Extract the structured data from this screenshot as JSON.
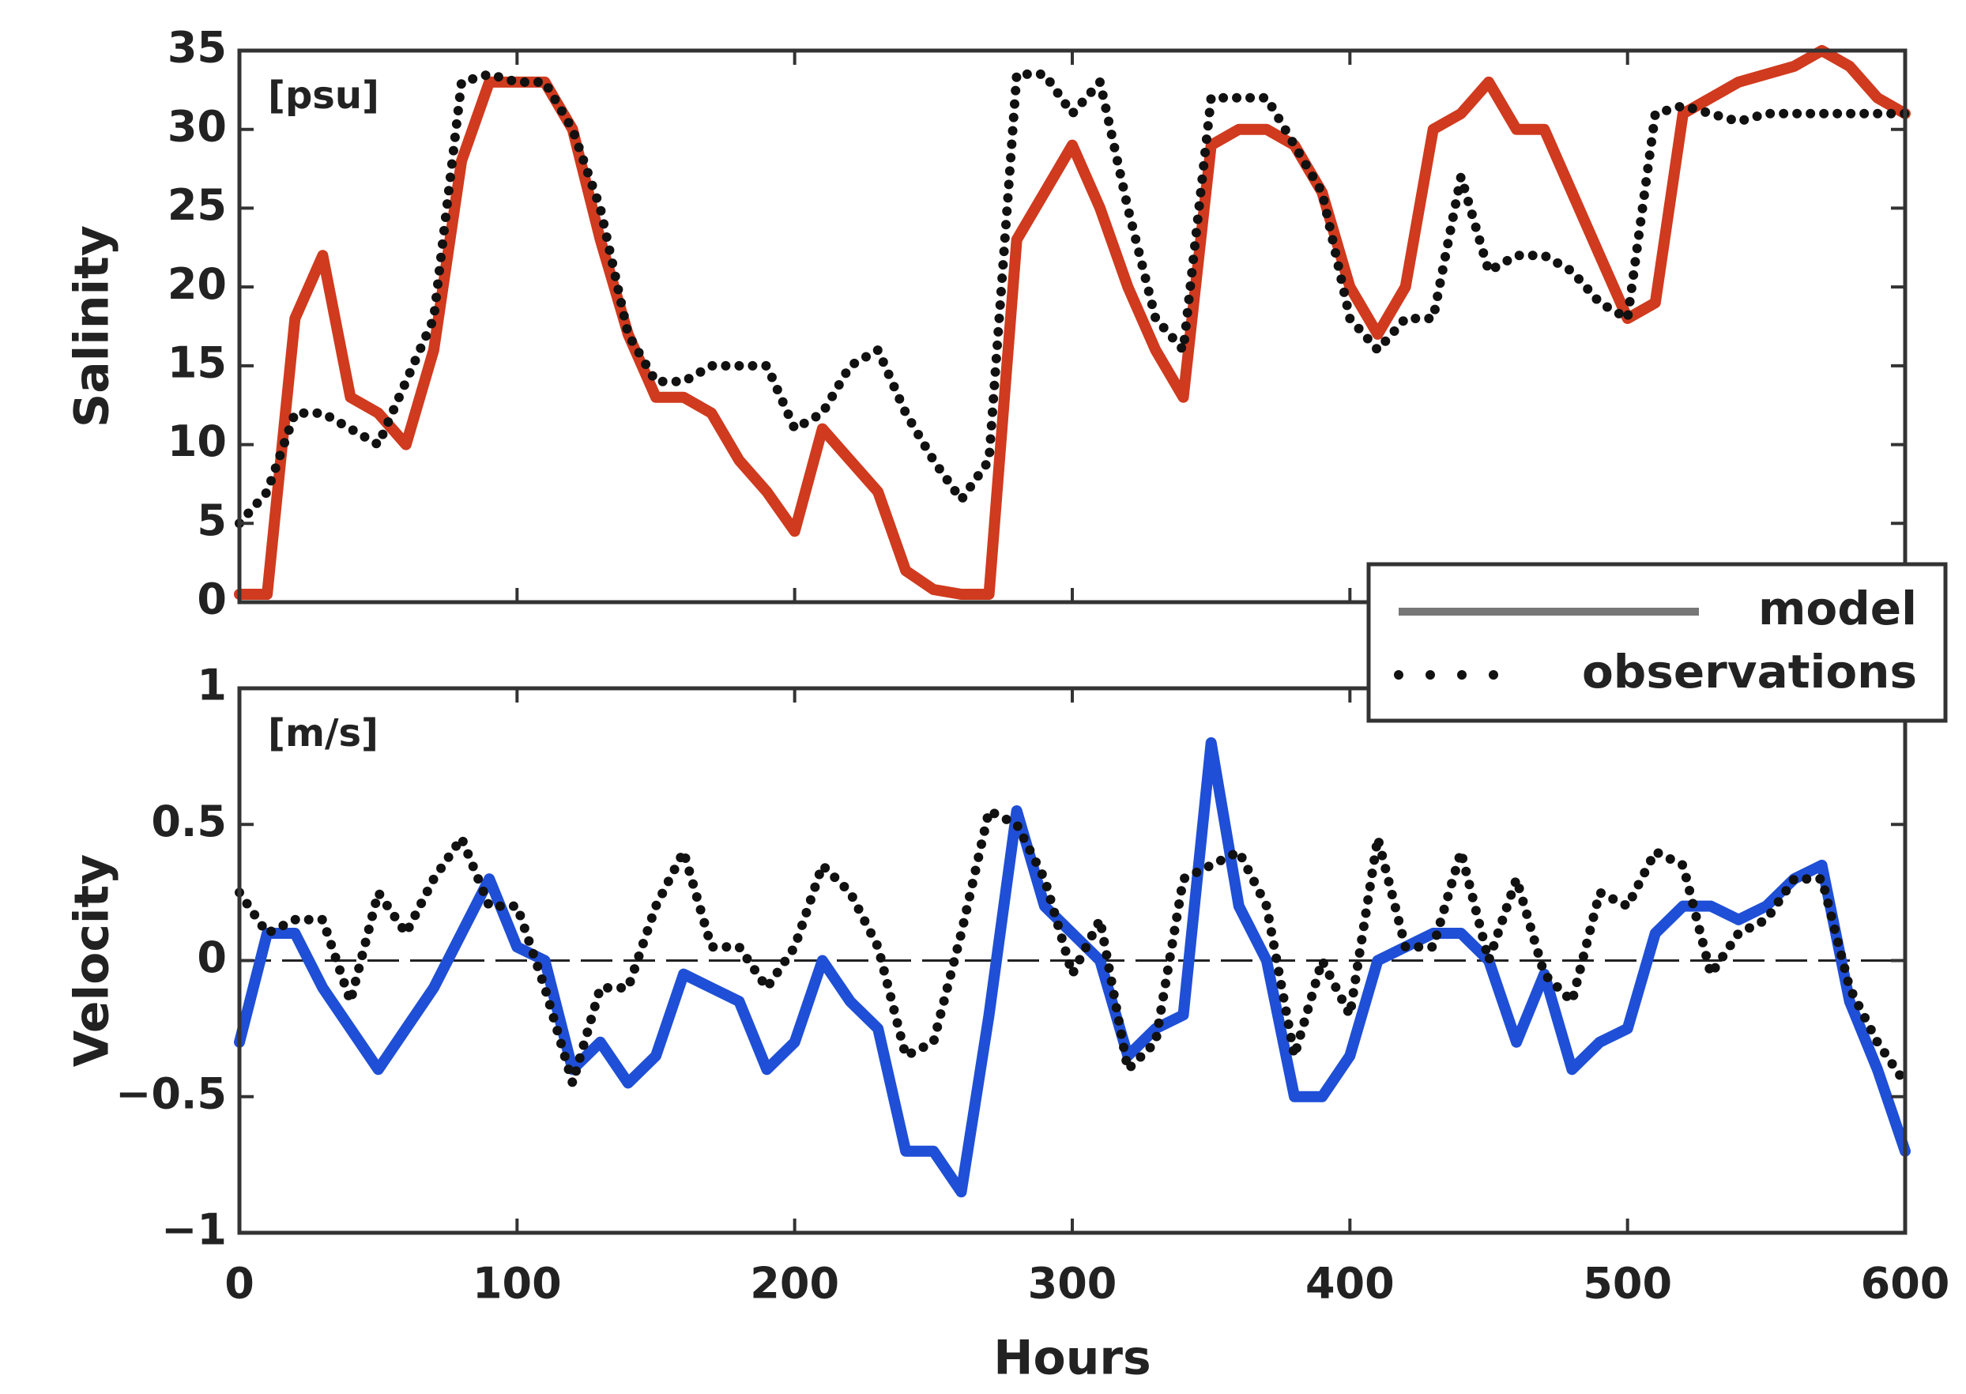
{
  "chart_data": [
    {
      "type": "line",
      "ylabel": "Salinity",
      "annotation": "[psu]",
      "x": [
        0,
        10,
        20,
        30,
        40,
        50,
        60,
        70,
        80,
        90,
        100,
        110,
        120,
        130,
        140,
        150,
        160,
        170,
        180,
        190,
        200,
        210,
        220,
        230,
        240,
        250,
        260,
        270,
        280,
        290,
        300,
        310,
        320,
        330,
        340,
        350,
        360,
        370,
        380,
        390,
        400,
        410,
        420,
        430,
        440,
        450,
        460,
        470,
        480,
        490,
        500,
        510,
        520,
        530,
        540,
        550,
        560,
        570,
        580,
        590,
        600
      ],
      "series": [
        {
          "name": "model",
          "color": "#d03a1e",
          "style": "solid",
          "values": [
            0.5,
            0.5,
            18,
            22,
            13,
            12,
            10,
            16,
            28,
            33,
            33,
            33,
            30,
            23,
            17,
            13,
            13,
            12,
            9,
            7,
            4.5,
            11,
            9,
            7,
            2,
            0.8,
            0.5,
            0.5,
            23,
            26,
            29,
            25,
            20,
            16,
            13,
            29,
            30,
            30,
            29,
            26,
            20,
            17,
            20,
            30,
            31,
            33,
            30,
            30,
            26,
            22,
            18,
            19,
            31,
            32,
            33,
            33.5,
            34,
            35,
            34,
            32,
            31
          ]
        },
        {
          "name": "observations",
          "color": "#111111",
          "style": "dotted",
          "values": [
            5,
            7,
            12,
            12,
            11,
            10,
            14,
            18,
            33,
            33.5,
            33,
            33,
            30,
            25,
            17,
            14,
            14,
            15,
            15,
            15,
            11,
            12,
            15,
            16,
            12,
            9,
            6.5,
            9,
            33.5,
            33.5,
            31,
            33,
            25,
            18,
            16,
            32,
            32,
            32,
            29,
            26,
            18,
            16,
            18,
            18,
            27,
            21,
            22,
            22,
            21,
            19,
            18,
            31,
            31.5,
            31,
            30.5,
            31,
            31,
            31,
            31,
            31,
            31
          ]
        }
      ],
      "xlim": [
        0,
        600
      ],
      "xticks": [
        0,
        100,
        200,
        300,
        400,
        500,
        600
      ],
      "ylim": [
        0,
        35
      ],
      "yticks": [
        0,
        5,
        10,
        15,
        20,
        25,
        30,
        35
      ]
    },
    {
      "type": "line",
      "ylabel": "Velocity",
      "annotation": "[m/s]",
      "xlabel": "Hours",
      "zero_line": true,
      "x": [
        0,
        10,
        20,
        30,
        40,
        50,
        60,
        70,
        80,
        90,
        100,
        110,
        120,
        130,
        140,
        150,
        160,
        170,
        180,
        190,
        200,
        210,
        220,
        230,
        240,
        250,
        260,
        270,
        280,
        290,
        300,
        310,
        320,
        330,
        340,
        350,
        360,
        370,
        380,
        390,
        400,
        410,
        420,
        430,
        440,
        450,
        460,
        470,
        480,
        490,
        500,
        510,
        520,
        530,
        540,
        550,
        560,
        570,
        580,
        590,
        600
      ],
      "series": [
        {
          "color": "#1f4fd6",
          "style": "solid",
          "values": [
            -0.3,
            0.1,
            0.1,
            -0.1,
            -0.25,
            -0.4,
            -0.25,
            -0.1,
            0.1,
            0.3,
            0.05,
            0,
            -0.4,
            -0.3,
            -0.45,
            -0.35,
            -0.05,
            -0.1,
            -0.15,
            -0.4,
            -0.3,
            0,
            -0.15,
            -0.25,
            -0.7,
            -0.7,
            -0.85,
            -0.2,
            0.55,
            0.2,
            0.1,
            0,
            -0.35,
            -0.25,
            -0.2,
            0.8,
            0.2,
            0,
            -0.5,
            -0.5,
            -0.35,
            0,
            0.05,
            0.1,
            0.1,
            0,
            -0.3,
            -0.05,
            -0.4,
            -0.3,
            -0.25,
            0.1,
            0.2,
            0.2,
            0.15,
            0.2,
            0.3,
            0.35,
            -0.15,
            -0.4,
            -0.7
          ]
        },
        {
          "color": "#111111",
          "style": "dotted",
          "values": [
            0.25,
            0.1,
            0.15,
            0.15,
            -0.15,
            0.25,
            0.1,
            0.3,
            0.45,
            0.2,
            0.2,
            -0.1,
            -0.45,
            -0.1,
            -0.1,
            0.2,
            0.4,
            0.05,
            0.05,
            -0.1,
            0.05,
            0.35,
            0.25,
            0.05,
            -0.35,
            -0.3,
            0.1,
            0.55,
            0.5,
            0.3,
            -0.05,
            0.15,
            -0.4,
            -0.3,
            0.3,
            0.35,
            0.4,
            0.2,
            -0.35,
            0,
            -0.2,
            0.45,
            0.05,
            0.05,
            0.4,
            0,
            0.3,
            -0.05,
            -0.15,
            0.25,
            0.2,
            0.4,
            0.35,
            -0.05,
            0.1,
            0.15,
            0.3,
            0.3,
            -0.1,
            -0.3,
            -0.45
          ]
        }
      ],
      "xlim": [
        0,
        600
      ],
      "xticks": [
        0,
        100,
        200,
        300,
        400,
        500,
        600
      ],
      "ylim": [
        -1,
        1
      ],
      "yticks": [
        {
          "value": -1,
          "label": "−1"
        },
        {
          "value": -0.5,
          "label": "−0.5"
        },
        0,
        0.5,
        1
      ]
    }
  ]
}
